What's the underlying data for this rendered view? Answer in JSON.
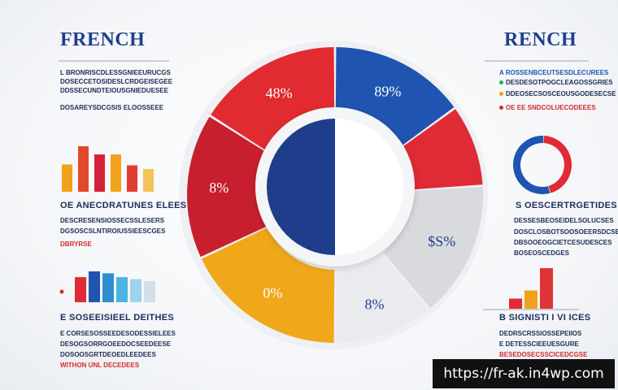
{
  "header": {
    "left_title": "FRENCH",
    "right_title": "RENCH"
  },
  "chart_data": {
    "type": "pie",
    "donut_slices": [
      {
        "label": "89%",
        "value": 15,
        "color": "#1f55b0"
      },
      {
        "label": "",
        "value": 9,
        "color": "#e02a35"
      },
      {
        "label": "$S%",
        "value": 15,
        "color": "#d8dadd"
      },
      {
        "label": "8%",
        "value": 11,
        "color": "#e9ebee"
      },
      {
        "label": "0%",
        "value": 18,
        "color": "#f0a81a"
      },
      {
        "label": "8%",
        "value": 16,
        "color": "#c81f2e"
      },
      {
        "label": "48%",
        "value": 16,
        "color": "#e12b30"
      }
    ],
    "center_pie": [
      {
        "label": "",
        "value": 50,
        "color": "#1e3e8c"
      },
      {
        "label": "",
        "value": 50,
        "color": "#ffffff"
      }
    ]
  },
  "left_panel": {
    "section1": {
      "lines": [
        "L  BRONRISCDLESSGNIEEURUCGS",
        "DOSECCETOSIDESLCRDGEISEGEE",
        "DDSSECUNDTEIOUSGNIEDUESEE",
        "DOSAREYSDCGSIS ELOOSSEEE"
      ]
    },
    "bars1": {
      "values": [
        60,
        100,
        82,
        82,
        58,
        50
      ],
      "colors": [
        "#f0a21c",
        "#e04a2a",
        "#d6203a",
        "#f0a21c",
        "#e23b35",
        "#f2c35a"
      ]
    },
    "section2": {
      "heading": "OE  ANECDRATUNES  ELEES",
      "lines": [
        "DESCRESENSIOSSECSSLESERS",
        "DGSOSCSLNTIROIUSSIEESCGES",
        "DBRYRSE"
      ]
    },
    "bars2": {
      "values": [
        65,
        80,
        75,
        65,
        60,
        55
      ],
      "colors": [
        "#e02a35",
        "#1f55b0",
        "#2e8fd0",
        "#4cb4e0",
        "#9ed3ee",
        "#d5dde6"
      ]
    },
    "section3": {
      "heading": "E  SOSEEISIEEL DEITHES",
      "lines": [
        "E CORSESOSSEEDESODESSIELEES",
        "DESOGSORRGOEEDOCSEEDEESE",
        "DOSOOSGRTDEOEDLEEDEES",
        "WITHON  UNL  DECEDEES"
      ]
    }
  },
  "right_panel": {
    "section1": {
      "lines": [
        "A  ROSSENBCEUTSESDLECUREES",
        "DESDESOTPOGCLEAGOSSGRIES",
        "DDEOSECSOSCEOUSGODESECSE",
        "OE  EE SNDCOLUECODEEES"
      ]
    },
    "ring": {
      "values": [
        45,
        55
      ],
      "colors": [
        "#e02a35",
        "#1f55b0"
      ]
    },
    "section2": {
      "heading": "S  OESCERTRGETIDES",
      "lines": [
        "DESSESBEOSEIDELSOLUCSES",
        "DOSCLOSBOTSOOSOEERSDCSE",
        "DBSOOEOGCIETCESUDESCES",
        "BOSEOSCEDGES"
      ]
    },
    "bars": {
      "values": [
        25,
        45,
        100
      ],
      "colors": [
        "#e02a35",
        "#f0a21c",
        "#e03535"
      ]
    },
    "section3": {
      "heading": "B  SIGNISTI I VI ICES",
      "lines": [
        "DEDRSCRSSIOSSEPEIIOS",
        "E DETESSCIEEUESGURE",
        "BESEDOSECSSCICEDCGSE"
      ]
    }
  },
  "watermark": "https://fr-ak.in4wp.com"
}
